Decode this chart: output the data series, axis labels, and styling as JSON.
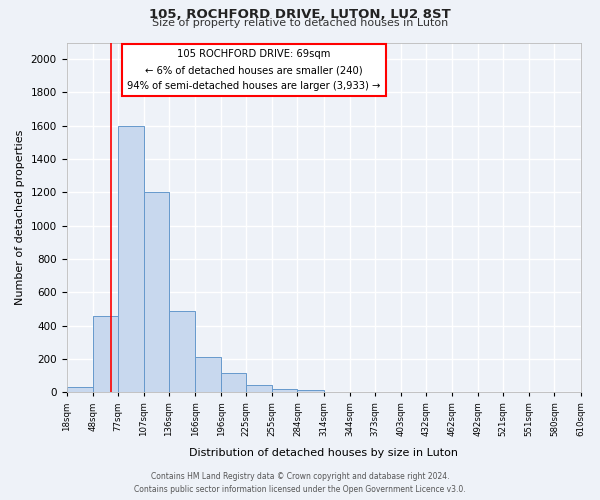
{
  "title": "105, ROCHFORD DRIVE, LUTON, LU2 8ST",
  "subtitle": "Size of property relative to detached houses in Luton",
  "xlabel": "Distribution of detached houses by size in Luton",
  "ylabel": "Number of detached properties",
  "bar_values": [
    35,
    460,
    1600,
    1200,
    490,
    210,
    115,
    45,
    20,
    15,
    0,
    0,
    0,
    0,
    0,
    0,
    0,
    0,
    0,
    0
  ],
  "bin_labels": [
    "18sqm",
    "48sqm",
    "77sqm",
    "107sqm",
    "136sqm",
    "166sqm",
    "196sqm",
    "225sqm",
    "255sqm",
    "284sqm",
    "314sqm",
    "344sqm",
    "373sqm",
    "403sqm",
    "432sqm",
    "462sqm",
    "492sqm",
    "521sqm",
    "551sqm",
    "580sqm",
    "610sqm"
  ],
  "bar_color": "#c8d8ee",
  "bar_edge_color": "#6699cc",
  "vline_x": 69,
  "annotation_line1": "105 ROCHFORD DRIVE: 69sqm",
  "annotation_line2": "← 6% of detached houses are smaller (240)",
  "annotation_line3": "94% of semi-detached houses are larger (3,933) →",
  "ylim": [
    0,
    2100
  ],
  "yticks": [
    0,
    200,
    400,
    600,
    800,
    1000,
    1200,
    1400,
    1600,
    1800,
    2000
  ],
  "footer_line1": "Contains HM Land Registry data © Crown copyright and database right 2024.",
  "footer_line2": "Contains public sector information licensed under the Open Government Licence v3.0.",
  "bg_color": "#eef2f8",
  "plot_bg_color": "#eef2f8",
  "grid_color": "white",
  "bin_edges": [
    18,
    48,
    77,
    107,
    136,
    166,
    196,
    225,
    255,
    284,
    314,
    344,
    373,
    403,
    432,
    462,
    492,
    521,
    551,
    580,
    610
  ]
}
